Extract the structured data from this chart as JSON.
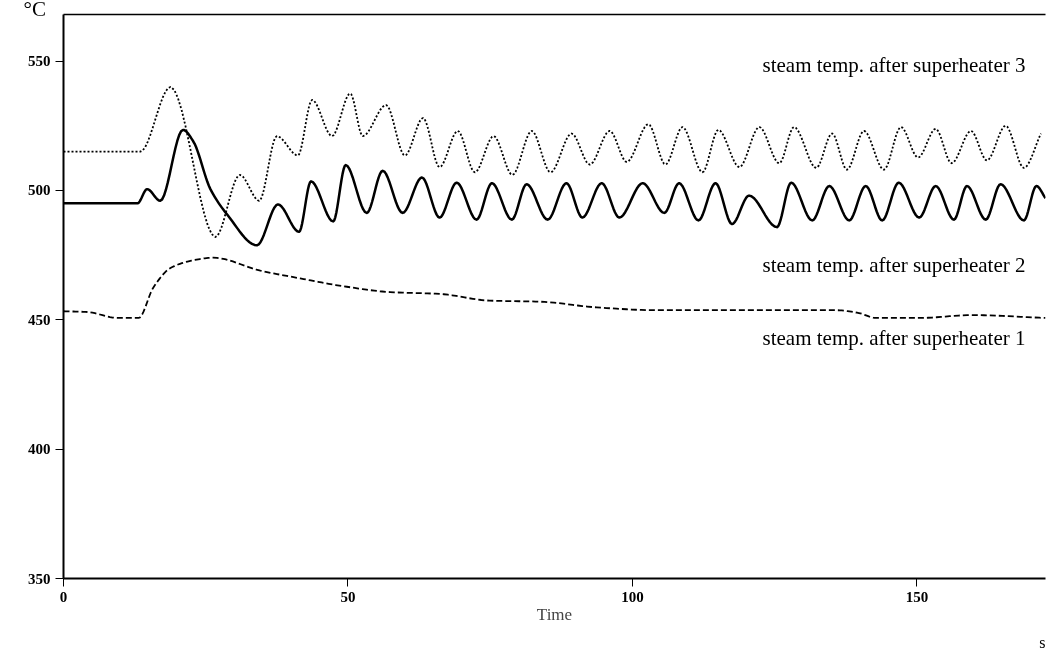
{
  "chart_data": {
    "type": "line",
    "xlabel": "Time",
    "ylabel": "°C",
    "annotations": [
      "s"
    ],
    "xlim": [
      0,
      172.6
    ],
    "ylim": [
      350,
      568
    ],
    "xticks": [
      0,
      50,
      100,
      150
    ],
    "yticks": [
      350,
      400,
      450,
      500,
      550
    ],
    "grid": false,
    "series": [
      {
        "name": "steam temp. after superheater 1",
        "color": "#000000",
        "line_style": "dashed",
        "x": [
          0,
          4.2,
          9.5,
          13.2,
          15.8,
          18.8,
          22.8,
          26.3,
          34.6,
          41.6,
          49.1,
          57.4,
          66.1,
          74.9,
          83.7,
          93.7,
          104.2,
          117,
          135.8,
          139.8,
          142.8,
          150.4,
          159.6,
          172.6
        ],
        "values": [
          453.3,
          453,
          450.7,
          450.7,
          462.5,
          470,
          473,
          474,
          469,
          466,
          463,
          460.7,
          460,
          457.4,
          457,
          454.8,
          453.7,
          453.7,
          453.7,
          452.6,
          450.7,
          450.7,
          451.8,
          450.7
        ]
      },
      {
        "name": "steam temp. after superheater 2",
        "color": "#000000",
        "line_style": "solid",
        "x": [
          0,
          13,
          14.7,
          17,
          21,
          22.8,
          25.8,
          28.8,
          34,
          37.7,
          41.4,
          43.5,
          47.4,
          49.6,
          53.3,
          56.1,
          59.6,
          63,
          66.1,
          69.1,
          72.6,
          75.3,
          78.8,
          81.4,
          85.1,
          88.4,
          91.2,
          94.6,
          97.7,
          101.8,
          105.6,
          108.2,
          111.6,
          114.6,
          117.5,
          120.5,
          125.4,
          127.9,
          131.6,
          134.6,
          138.1,
          141,
          143.9,
          146.8,
          150.4,
          153.3,
          156.5,
          158.8,
          162.1,
          164.7,
          168.8,
          171,
          172.6
        ],
        "values": [
          495,
          495,
          500.5,
          496,
          523.4,
          519,
          500.6,
          490.6,
          478.8,
          494.6,
          484,
          503.5,
          488,
          509.8,
          491.3,
          507.6,
          491.3,
          505,
          489.5,
          503,
          488.7,
          502.8,
          488.7,
          502.4,
          488.7,
          502.8,
          489.5,
          502.8,
          489.5,
          502.8,
          491.3,
          502.8,
          488.4,
          502.8,
          487,
          498,
          485.8,
          503,
          488.4,
          501.7,
          488.4,
          501.7,
          488.4,
          503,
          489.5,
          501.7,
          488.7,
          501.7,
          488.7,
          502.4,
          488.4,
          501.7,
          497
        ]
      },
      {
        "name": "steam temp. after superheater 3",
        "color": "#000000",
        "line_style": "dotted",
        "x": [
          0,
          13.5,
          18.8,
          26.7,
          31,
          34.4,
          37.5,
          41.2,
          43.7,
          47.2,
          50.4,
          52.6,
          56.7,
          60,
          63.2,
          66.1,
          69.3,
          72.3,
          75.6,
          78.9,
          82.3,
          85.6,
          89.3,
          92.5,
          96,
          99,
          102.8,
          105.8,
          108.8,
          112.3,
          115.1,
          118.8,
          122.3,
          125.8,
          128.4,
          132.3,
          135.1,
          137.7,
          140.7,
          144.2,
          147.2,
          150.2,
          153.3,
          156.1,
          159.5,
          162.3,
          165.6,
          168.8,
          171.8
        ],
        "values": [
          515,
          515,
          540,
          482,
          506,
          496,
          521,
          513.5,
          535,
          521,
          537.5,
          521,
          533,
          513.5,
          528,
          509,
          523,
          507,
          521,
          506,
          523,
          507,
          522,
          510,
          523,
          511,
          525.6,
          510,
          524.5,
          507,
          523.4,
          509,
          524.5,
          510.5,
          524.5,
          508.7,
          522,
          508,
          523,
          508,
          524.5,
          512.7,
          523.8,
          510.5,
          523,
          511.6,
          525,
          508.7,
          522
        ]
      }
    ]
  }
}
